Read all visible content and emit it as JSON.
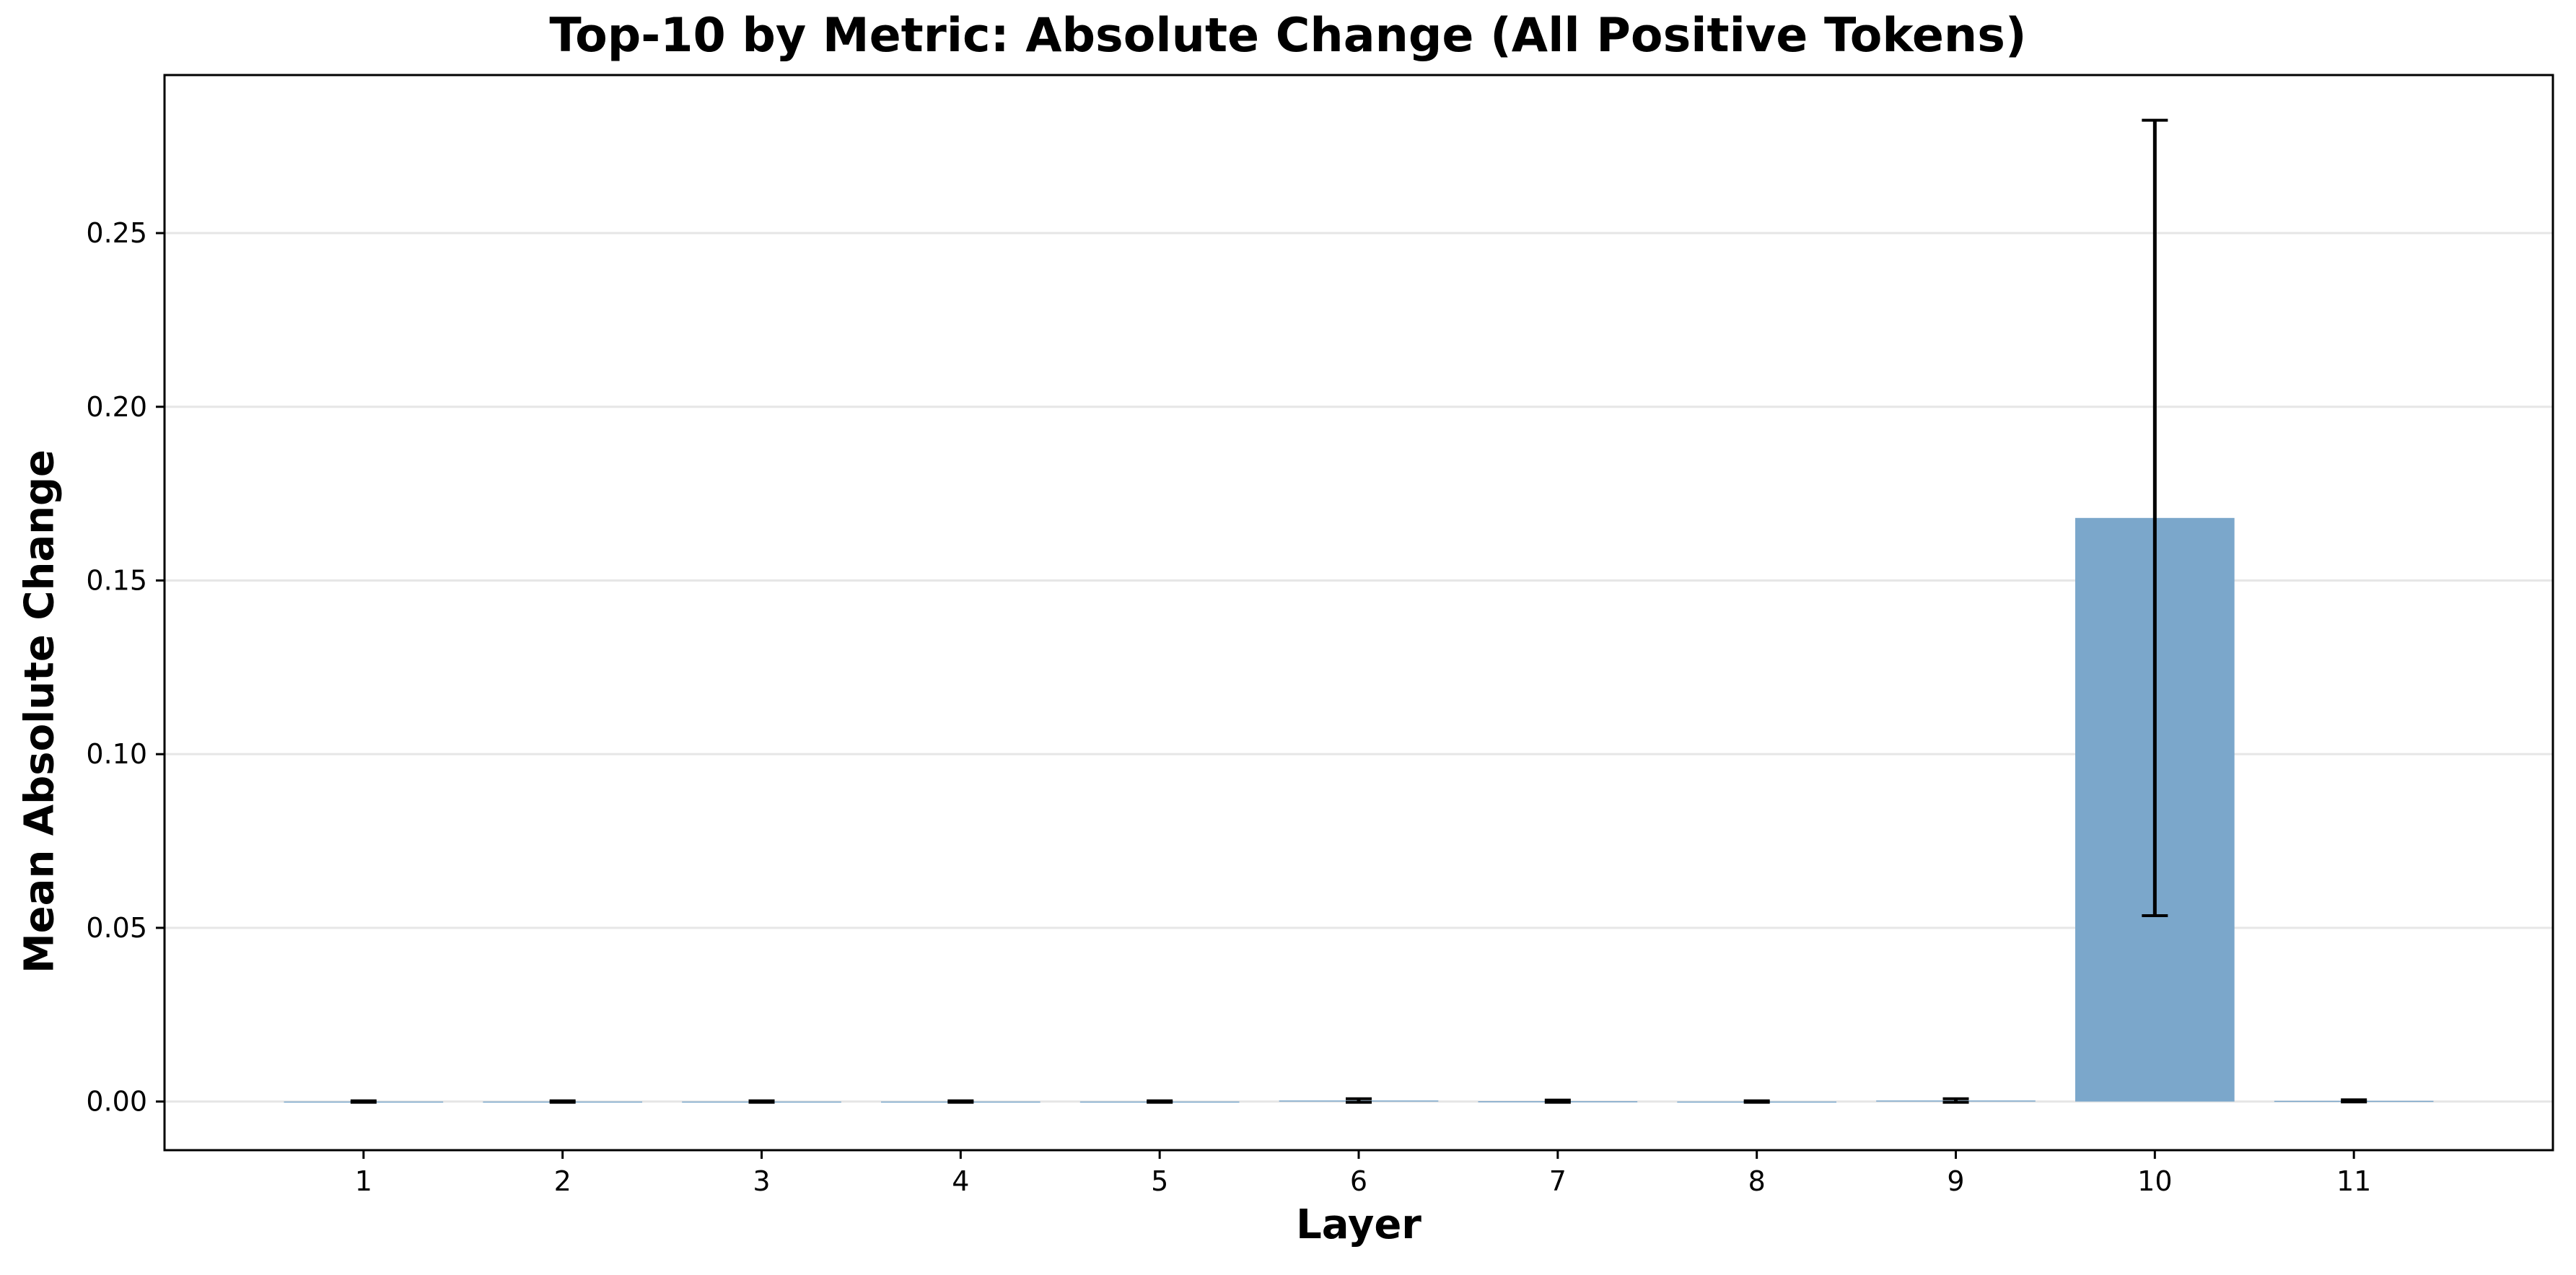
{
  "chart_data": {
    "type": "bar",
    "title": "Top-10 by Metric: Absolute Change (All Positive Tokens)",
    "xlabel": "Layer",
    "ylabel": "Mean Absolute Change",
    "categories": [
      "1",
      "2",
      "3",
      "4",
      "5",
      "6",
      "7",
      "8",
      "9",
      "10",
      "11"
    ],
    "values": [
      0.0,
      0.0,
      0.0,
      0.0,
      0.0,
      0.0003,
      0.0001,
      0.0,
      0.0003,
      0.168,
      0.0002
    ],
    "error": [
      0.0002,
      0.0002,
      0.0002,
      0.0002,
      0.0002,
      0.0005,
      0.0003,
      0.0002,
      0.0005,
      0.1145,
      0.0003
    ],
    "ylim": [
      -0.014,
      0.2955
    ],
    "yticks": [
      0.0,
      0.05,
      0.1,
      0.15,
      0.2,
      0.25
    ],
    "ytick_labels": [
      "0.00",
      "0.05",
      "0.10",
      "0.15",
      "0.20",
      "0.25"
    ],
    "grid": "horizontal",
    "colors": {
      "bar": "#7ba7cb",
      "error": "#000000",
      "grid": "#e6e6e6",
      "axis": "#000000"
    }
  }
}
